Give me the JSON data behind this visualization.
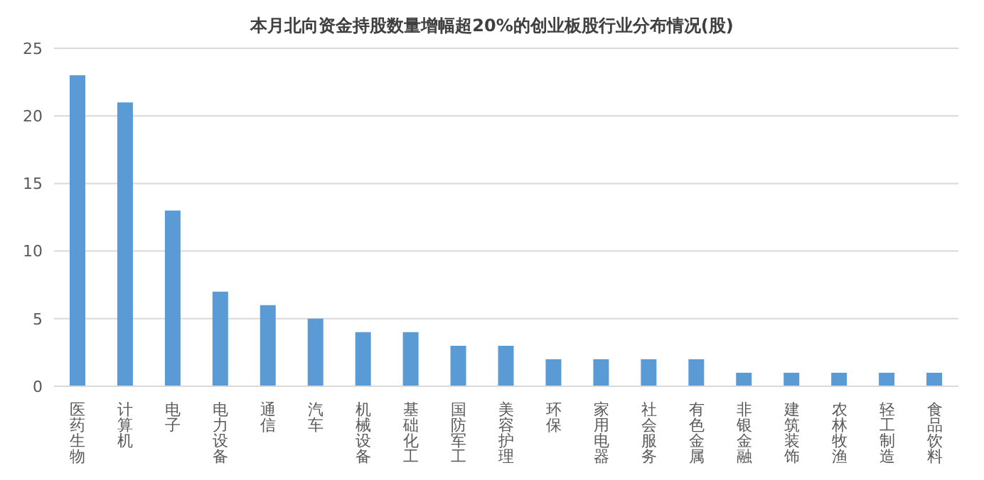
{
  "chart_data": {
    "type": "bar",
    "title": "本月北向资金持股数量增幅超20%的创业板股行业分布情况(股)",
    "categories": [
      "医药生物",
      "计算机",
      "电子",
      "电力设备",
      "通信",
      "汽车",
      "机械设备",
      "基础化工",
      "国防军工",
      "美容护理",
      "环保",
      "家用电器",
      "社会服务",
      "有色金属",
      "非银金融",
      "建筑装饰",
      "农林牧渔",
      "轻工制造",
      "食品饮料"
    ],
    "values": [
      23,
      21,
      13,
      7,
      6,
      5,
      4,
      4,
      3,
      3,
      2,
      2,
      2,
      2,
      1,
      1,
      1,
      1,
      1
    ],
    "color": "#5b9bd5",
    "ylim": [
      0,
      25
    ],
    "yticks": [
      0,
      5,
      10,
      15,
      20,
      25
    ],
    "grid": "y"
  }
}
